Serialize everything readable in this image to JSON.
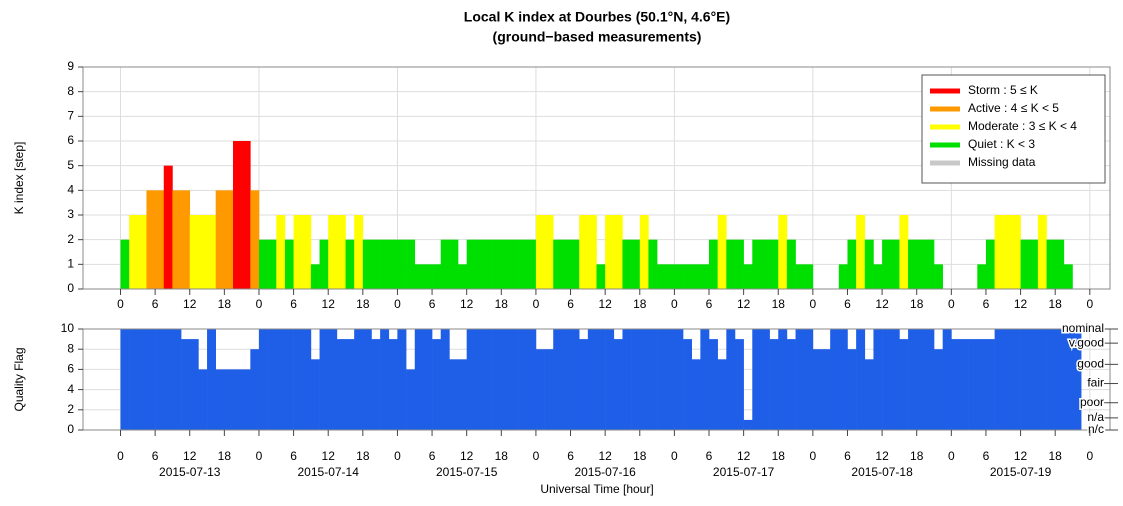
{
  "chart_data": {
    "type": "bar",
    "title": [
      "Local K index at Dourbes (50.1°N, 4.6°E)",
      "(ground−based measurements)"
    ],
    "xlabel": "Universal Time [hour]",
    "xlim": [
      "2015-07-12 17:30",
      "2015-07-20 03:30"
    ],
    "xticks": [
      {
        "value": "2015-07-13 00:00",
        "label": "0"
      },
      {
        "value": "2015-07-13 06:00",
        "label": "6"
      },
      {
        "value": "2015-07-13 12:00",
        "label": "12"
      },
      {
        "value": "2015-07-13 18:00",
        "label": "18"
      },
      {
        "value": "2015-07-14 00:00",
        "label": "0"
      },
      {
        "value": "2015-07-14 06:00",
        "label": "6"
      },
      {
        "value": "2015-07-14 12:00",
        "label": "12"
      },
      {
        "value": "2015-07-14 18:00",
        "label": "18"
      },
      {
        "value": "2015-07-15 00:00",
        "label": "0"
      },
      {
        "value": "2015-07-15 06:00",
        "label": "6"
      },
      {
        "value": "2015-07-15 12:00",
        "label": "12"
      },
      {
        "value": "2015-07-15 18:00",
        "label": "18"
      },
      {
        "value": "2015-07-16 00:00",
        "label": "0"
      },
      {
        "value": "2015-07-16 06:00",
        "label": "6"
      },
      {
        "value": "2015-07-16 12:00",
        "label": "12"
      },
      {
        "value": "2015-07-16 18:00",
        "label": "18"
      },
      {
        "value": "2015-07-17 00:00",
        "label": "0"
      },
      {
        "value": "2015-07-17 06:00",
        "label": "6"
      },
      {
        "value": "2015-07-17 12:00",
        "label": "12"
      },
      {
        "value": "2015-07-17 18:00",
        "label": "18"
      },
      {
        "value": "2015-07-18 00:00",
        "label": "0"
      },
      {
        "value": "2015-07-18 06:00",
        "label": "6"
      },
      {
        "value": "2015-07-18 12:00",
        "label": "12"
      },
      {
        "value": "2015-07-18 18:00",
        "label": "18"
      },
      {
        "value": "2015-07-19 00:00",
        "label": "0"
      },
      {
        "value": "2015-07-19 06:00",
        "label": "6"
      },
      {
        "value": "2015-07-19 12:00",
        "label": "12"
      },
      {
        "value": "2015-07-19 18:00",
        "label": "18"
      },
      {
        "value": "2015-07-20 00:00",
        "label": "0"
      }
    ],
    "date_ticks": [
      {
        "value": "2015-07-13 12:00",
        "label": "2015-07-13"
      },
      {
        "value": "2015-07-14 12:00",
        "label": "2015-07-14"
      },
      {
        "value": "2015-07-15 12:00",
        "label": "2015-07-15"
      },
      {
        "value": "2015-07-16 12:00",
        "label": "2015-07-16"
      },
      {
        "value": "2015-07-17 12:00",
        "label": "2015-07-17"
      },
      {
        "value": "2015-07-18 12:00",
        "label": "2015-07-18"
      },
      {
        "value": "2015-07-19 12:00",
        "label": "2015-07-19"
      }
    ],
    "x": [
      "2015-07-13 00:00",
      "2015-07-13 01:30",
      "2015-07-13 03:00",
      "2015-07-13 04:30",
      "2015-07-13 06:00",
      "2015-07-13 07:30",
      "2015-07-13 09:00",
      "2015-07-13 10:30",
      "2015-07-13 12:00",
      "2015-07-13 13:30",
      "2015-07-13 15:00",
      "2015-07-13 16:30",
      "2015-07-13 18:00",
      "2015-07-13 19:30",
      "2015-07-13 21:00",
      "2015-07-13 22:30",
      "2015-07-14 00:00",
      "2015-07-14 01:30",
      "2015-07-14 03:00",
      "2015-07-14 04:30",
      "2015-07-14 06:00",
      "2015-07-14 07:30",
      "2015-07-14 09:00",
      "2015-07-14 10:30",
      "2015-07-14 12:00",
      "2015-07-14 13:30",
      "2015-07-14 15:00",
      "2015-07-14 16:30",
      "2015-07-14 18:00",
      "2015-07-14 19:30",
      "2015-07-14 21:00",
      "2015-07-14 22:30",
      "2015-07-15 00:00",
      "2015-07-15 01:30",
      "2015-07-15 03:00",
      "2015-07-15 04:30",
      "2015-07-15 06:00",
      "2015-07-15 07:30",
      "2015-07-15 09:00",
      "2015-07-15 10:30",
      "2015-07-15 12:00",
      "2015-07-15 13:30",
      "2015-07-15 15:00",
      "2015-07-15 16:30",
      "2015-07-15 18:00",
      "2015-07-15 19:30",
      "2015-07-15 21:00",
      "2015-07-15 22:30",
      "2015-07-16 00:00",
      "2015-07-16 01:30",
      "2015-07-16 03:00",
      "2015-07-16 04:30",
      "2015-07-16 06:00",
      "2015-07-16 07:30",
      "2015-07-16 09:00",
      "2015-07-16 10:30",
      "2015-07-16 12:00",
      "2015-07-16 13:30",
      "2015-07-16 15:00",
      "2015-07-16 16:30",
      "2015-07-16 18:00",
      "2015-07-16 19:30",
      "2015-07-16 21:00",
      "2015-07-16 22:30",
      "2015-07-17 00:00",
      "2015-07-17 01:30",
      "2015-07-17 03:00",
      "2015-07-17 04:30",
      "2015-07-17 06:00",
      "2015-07-17 07:30",
      "2015-07-17 09:00",
      "2015-07-17 10:30",
      "2015-07-17 12:00",
      "2015-07-17 13:30",
      "2015-07-17 15:00",
      "2015-07-17 16:30",
      "2015-07-17 18:00",
      "2015-07-17 19:30",
      "2015-07-17 21:00",
      "2015-07-17 22:30",
      "2015-07-18 00:00",
      "2015-07-18 01:30",
      "2015-07-18 03:00",
      "2015-07-18 04:30",
      "2015-07-18 06:00",
      "2015-07-18 07:30",
      "2015-07-18 09:00",
      "2015-07-18 10:30",
      "2015-07-18 12:00",
      "2015-07-18 13:30",
      "2015-07-18 15:00",
      "2015-07-18 16:30",
      "2015-07-18 18:00",
      "2015-07-18 19:30",
      "2015-07-18 21:00",
      "2015-07-18 22:30",
      "2015-07-19 00:00",
      "2015-07-19 01:30",
      "2015-07-19 03:00",
      "2015-07-19 04:30",
      "2015-07-19 06:00",
      "2015-07-19 07:30",
      "2015-07-19 09:00",
      "2015-07-19 10:30",
      "2015-07-19 12:00",
      "2015-07-19 13:30",
      "2015-07-19 15:00",
      "2015-07-19 16:30",
      "2015-07-19 18:00",
      "2015-07-19 19:30",
      "2015-07-19 21:00",
      "2015-07-19 22:30"
    ],
    "panels": [
      {
        "ylabel": "K index [step]",
        "ylim": [
          0,
          9
        ],
        "yticks": [
          0,
          1,
          2,
          3,
          4,
          5,
          6,
          7,
          8,
          9
        ],
        "grid": true,
        "legend_position": "upper right",
        "legend": [
          {
            "label": "Storm : 5 ≤ K",
            "color": "#ff0000"
          },
          {
            "label": "Active : 4 ≤ K < 5",
            "color": "#ff9900"
          },
          {
            "label": "Moderate : 3 ≤ K < 4",
            "color": "#ffff00"
          },
          {
            "label": "Quiet : K < 3",
            "color": "#00e000"
          },
          {
            "label": "Missing data",
            "color": "#c8c8c8"
          }
        ],
        "values": [
          2,
          3,
          3,
          4,
          4,
          5,
          4,
          4,
          3,
          3,
          3,
          4,
          4,
          6,
          6,
          4,
          2,
          2,
          3,
          2,
          3,
          3,
          1,
          2,
          3,
          3,
          2,
          3,
          2,
          2,
          2,
          2,
          2,
          2,
          1,
          1,
          1,
          2,
          2,
          1,
          2,
          2,
          2,
          2,
          2,
          2,
          2,
          2,
          3,
          3,
          2,
          2,
          2,
          3,
          3,
          1,
          3,
          3,
          2,
          2,
          3,
          2,
          1,
          1,
          1,
          1,
          1,
          1,
          2,
          3,
          2,
          2,
          1,
          2,
          2,
          2,
          3,
          2,
          1,
          1,
          0,
          0,
          0,
          1,
          2,
          3,
          2,
          1,
          2,
          2,
          3,
          2,
          2,
          2,
          1,
          0,
          0,
          0,
          0,
          1,
          2,
          3,
          3,
          3,
          2,
          2,
          3,
          2,
          2,
          1,
          null,
          null
        ],
        "colors": [
          "#00e000",
          "#ffff00",
          "#ffff00",
          "#ff9900",
          "#ff9900",
          "#ff0000",
          "#ff9900",
          "#ff9900",
          "#ffff00",
          "#ffff00",
          "#ffff00",
          "#ff9900",
          "#ff9900",
          "#ff0000",
          "#ff0000",
          "#ff9900",
          "#00e000",
          "#00e000",
          "#ffff00",
          "#00e000",
          "#ffff00",
          "#ffff00",
          "#00e000",
          "#00e000",
          "#ffff00",
          "#ffff00",
          "#00e000",
          "#ffff00",
          "#00e000",
          "#00e000",
          "#00e000",
          "#00e000",
          "#00e000",
          "#00e000",
          "#00e000",
          "#00e000",
          "#00e000",
          "#00e000",
          "#00e000",
          "#00e000",
          "#00e000",
          "#00e000",
          "#00e000",
          "#00e000",
          "#00e000",
          "#00e000",
          "#00e000",
          "#00e000",
          "#ffff00",
          "#ffff00",
          "#00e000",
          "#00e000",
          "#00e000",
          "#ffff00",
          "#ffff00",
          "#00e000",
          "#ffff00",
          "#ffff00",
          "#00e000",
          "#00e000",
          "#ffff00",
          "#00e000",
          "#00e000",
          "#00e000",
          "#00e000",
          "#00e000",
          "#00e000",
          "#00e000",
          "#00e000",
          "#ffff00",
          "#00e000",
          "#00e000",
          "#00e000",
          "#00e000",
          "#00e000",
          "#00e000",
          "#ffff00",
          "#00e000",
          "#00e000",
          "#00e000",
          "#00e000",
          "#00e000",
          "#00e000",
          "#00e000",
          "#00e000",
          "#ffff00",
          "#00e000",
          "#00e000",
          "#00e000",
          "#00e000",
          "#ffff00",
          "#00e000",
          "#00e000",
          "#00e000",
          "#00e000",
          "#00e000",
          "#00e000",
          "#00e000",
          "#00e000",
          "#00e000",
          "#00e000",
          "#ffff00",
          "#ffff00",
          "#ffff00",
          "#00e000",
          "#00e000",
          "#ffff00",
          "#00e000",
          "#00e000",
          "#00e000",
          null,
          null
        ]
      },
      {
        "ylabel": "Quality Flag",
        "ylim": [
          0,
          10
        ],
        "yticks": [
          0,
          2,
          4,
          6,
          8,
          10
        ],
        "grid": true,
        "color": "#1f5fe8",
        "y2ticks": [
          {
            "value": 10,
            "label": "nominal"
          },
          {
            "value": 8.6,
            "label": "v.good"
          },
          {
            "value": 6.5,
            "label": "good"
          },
          {
            "value": 4.6,
            "label": "fair"
          },
          {
            "value": 2.7,
            "label": "poor"
          },
          {
            "value": 1.2,
            "label": "n/a"
          },
          {
            "value": 0,
            "label": "n/c"
          }
        ],
        "values": [
          10,
          10,
          10,
          10,
          10,
          10,
          10,
          9,
          9,
          6,
          10,
          6,
          6,
          6,
          6,
          8,
          10,
          10,
          10,
          10,
          10,
          10,
          7,
          10,
          10,
          9,
          9,
          10,
          10,
          9,
          10,
          9,
          10,
          6,
          10,
          10,
          9,
          10,
          7,
          7,
          10,
          10,
          10,
          10,
          10,
          10,
          10,
          10,
          8,
          8,
          10,
          10,
          10,
          9,
          10,
          10,
          10,
          9,
          10,
          10,
          10,
          10,
          10,
          10,
          10,
          9,
          7,
          10,
          9,
          7,
          10,
          9,
          1,
          10,
          10,
          9,
          10,
          9,
          10,
          10,
          8,
          8,
          10,
          10,
          8,
          10,
          7,
          10,
          10,
          10,
          9,
          10,
          10,
          10,
          8,
          10,
          9,
          9,
          9,
          9,
          9,
          10,
          10,
          10,
          10,
          10,
          10,
          10,
          10,
          10,
          10,
          null
        ]
      }
    ]
  }
}
